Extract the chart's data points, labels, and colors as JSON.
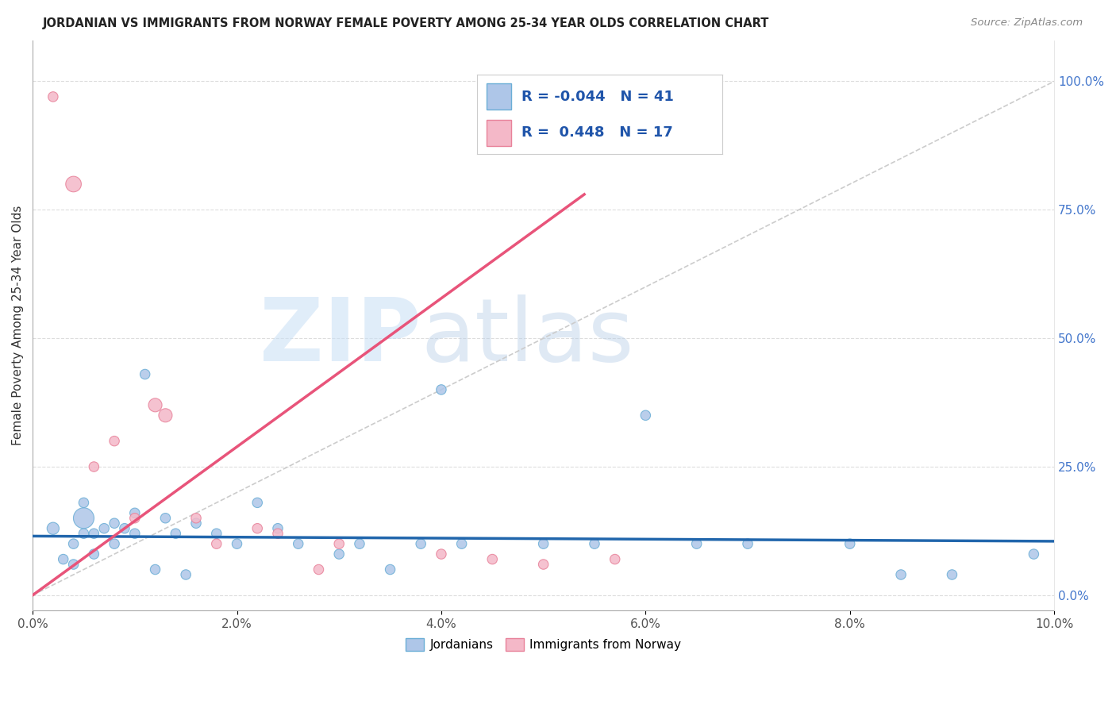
{
  "title": "JORDANIAN VS IMMIGRANTS FROM NORWAY FEMALE POVERTY AMONG 25-34 YEAR OLDS CORRELATION CHART",
  "source": "Source: ZipAtlas.com",
  "ylabel": "Female Poverty Among 25-34 Year Olds",
  "xlim": [
    0.0,
    0.1
  ],
  "ylim": [
    -0.03,
    1.08
  ],
  "xticks": [
    0.0,
    0.02,
    0.04,
    0.06,
    0.08,
    0.1
  ],
  "xtick_labels": [
    "0.0%",
    "2.0%",
    "4.0%",
    "6.0%",
    "8.0%",
    "10.0%"
  ],
  "yticks_right": [
    0.0,
    0.25,
    0.5,
    0.75,
    1.0
  ],
  "ytick_labels_right": [
    "0.0%",
    "25.0%",
    "50.0%",
    "75.0%",
    "100.0%"
  ],
  "blue_R": -0.044,
  "blue_N": 41,
  "pink_R": 0.448,
  "pink_N": 17,
  "blue_color": "#aec6e8",
  "blue_edge": "#6baed6",
  "pink_color": "#f4b8c8",
  "pink_edge": "#e8829a",
  "blue_line_color": "#2166ac",
  "pink_line_color": "#e8547a",
  "diagonal_color": "#cccccc",
  "watermark_zip": "ZIP",
  "watermark_atlas": "atlas",
  "blue_points_x": [
    0.002,
    0.003,
    0.004,
    0.004,
    0.005,
    0.005,
    0.005,
    0.006,
    0.006,
    0.007,
    0.008,
    0.008,
    0.009,
    0.01,
    0.01,
    0.011,
    0.012,
    0.013,
    0.014,
    0.015,
    0.016,
    0.018,
    0.02,
    0.022,
    0.024,
    0.026,
    0.03,
    0.032,
    0.035,
    0.038,
    0.04,
    0.042,
    0.05,
    0.055,
    0.06,
    0.065,
    0.07,
    0.08,
    0.085,
    0.09,
    0.098
  ],
  "blue_points_y": [
    0.13,
    0.07,
    0.1,
    0.06,
    0.15,
    0.12,
    0.18,
    0.08,
    0.12,
    0.13,
    0.1,
    0.14,
    0.13,
    0.16,
    0.12,
    0.43,
    0.05,
    0.15,
    0.12,
    0.04,
    0.14,
    0.12,
    0.1,
    0.18,
    0.13,
    0.1,
    0.08,
    0.1,
    0.05,
    0.1,
    0.4,
    0.1,
    0.1,
    0.1,
    0.35,
    0.1,
    0.1,
    0.1,
    0.04,
    0.04,
    0.08
  ],
  "blue_sizes": [
    120,
    80,
    80,
    80,
    350,
    80,
    80,
    80,
    80,
    80,
    80,
    80,
    80,
    80,
    80,
    80,
    80,
    80,
    80,
    80,
    80,
    80,
    80,
    80,
    80,
    80,
    80,
    80,
    80,
    80,
    80,
    80,
    80,
    80,
    80,
    80,
    80,
    80,
    80,
    80,
    80
  ],
  "pink_points_x": [
    0.002,
    0.004,
    0.006,
    0.008,
    0.01,
    0.012,
    0.013,
    0.016,
    0.018,
    0.022,
    0.024,
    0.028,
    0.03,
    0.04,
    0.045,
    0.05,
    0.057
  ],
  "pink_points_y": [
    0.97,
    0.8,
    0.25,
    0.3,
    0.15,
    0.37,
    0.35,
    0.15,
    0.1,
    0.13,
    0.12,
    0.05,
    0.1,
    0.08,
    0.07,
    0.06,
    0.07
  ],
  "pink_sizes": [
    80,
    200,
    80,
    80,
    80,
    150,
    150,
    80,
    80,
    80,
    80,
    80,
    80,
    80,
    80,
    80,
    80
  ],
  "blue_line_x": [
    0.0,
    0.1
  ],
  "blue_line_y": [
    0.115,
    0.105
  ],
  "pink_line_x": [
    0.0,
    0.054
  ],
  "pink_line_y": [
    0.0,
    0.78
  ]
}
